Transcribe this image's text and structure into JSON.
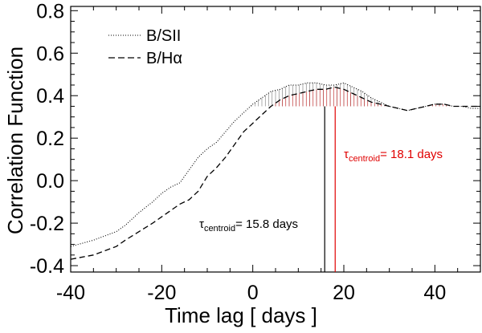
{
  "chart_data": {
    "type": "line",
    "title": "",
    "xlabel": "Time lag  [ days ]",
    "ylabel": "Correlation Function",
    "xlim": [
      -40,
      50
    ],
    "ylim": [
      -0.43,
      0.82
    ],
    "xticks": [
      -40,
      -20,
      0,
      20,
      40
    ],
    "xtick_labels": [
      "-40",
      "-20",
      "0",
      "20",
      "40"
    ],
    "yticks": [
      -0.4,
      -0.2,
      0.0,
      0.2,
      0.4,
      0.6,
      0.8
    ],
    "ytick_labels": [
      "-0.4",
      "-0.2",
      "0.0",
      "0.2",
      "0.4",
      "0.6",
      "0.8"
    ],
    "legend_position": "top-left",
    "threshold": 0.35,
    "series": [
      {
        "name": "B/SII",
        "style": "dotted",
        "color": "#000000",
        "x": [
          -40,
          -35,
          -30,
          -28,
          -25,
          -22,
          -20,
          -18,
          -16,
          -14,
          -12,
          -10,
          -8,
          -6,
          -4,
          -2,
          0,
          2,
          4,
          6,
          8,
          10,
          12,
          14,
          16,
          18,
          20,
          22,
          24,
          26,
          28,
          30,
          32,
          34,
          36,
          38,
          40,
          42,
          44,
          46,
          48,
          50
        ],
        "y": [
          -0.31,
          -0.28,
          -0.24,
          -0.21,
          -0.15,
          -0.1,
          -0.06,
          -0.03,
          -0.01,
          0.05,
          0.11,
          0.15,
          0.18,
          0.23,
          0.28,
          0.32,
          0.36,
          0.39,
          0.42,
          0.43,
          0.45,
          0.45,
          0.46,
          0.46,
          0.45,
          0.45,
          0.46,
          0.44,
          0.42,
          0.39,
          0.37,
          0.35,
          0.34,
          0.33,
          0.34,
          0.35,
          0.36,
          0.36,
          0.35,
          0.35,
          0.34,
          0.34
        ]
      },
      {
        "name": "B/Hα",
        "style": "dashed",
        "color": "#000000",
        "x": [
          -40,
          -35,
          -30,
          -28,
          -25,
          -22,
          -20,
          -18,
          -16,
          -14,
          -12,
          -10,
          -8,
          -6,
          -4,
          -2,
          0,
          2,
          4,
          6,
          8,
          10,
          12,
          14,
          16,
          18,
          20,
          22,
          24,
          26,
          28,
          30,
          32,
          34,
          36,
          38,
          40,
          42,
          44,
          46,
          48,
          50
        ],
        "y": [
          -0.37,
          -0.35,
          -0.31,
          -0.28,
          -0.24,
          -0.2,
          -0.17,
          -0.14,
          -0.11,
          -0.09,
          -0.05,
          0.02,
          0.06,
          0.11,
          0.17,
          0.23,
          0.27,
          0.31,
          0.35,
          0.38,
          0.4,
          0.41,
          0.42,
          0.43,
          0.43,
          0.44,
          0.43,
          0.41,
          0.39,
          0.37,
          0.36,
          0.35,
          0.34,
          0.33,
          0.34,
          0.35,
          0.36,
          0.36,
          0.35,
          0.35,
          0.35,
          0.35
        ]
      }
    ],
    "centroids": [
      {
        "label_symbol": "τ",
        "label_sub": "centroid",
        "label_value": "= 15.8 days",
        "value": 15.8,
        "color": "#000000",
        "hatch_series": 0
      },
      {
        "label_symbol": "τ",
        "label_sub": "centroid",
        "label_value": "= 18.1 days",
        "value": 18.1,
        "color": "#e00000",
        "hatch_series": 1
      }
    ]
  }
}
